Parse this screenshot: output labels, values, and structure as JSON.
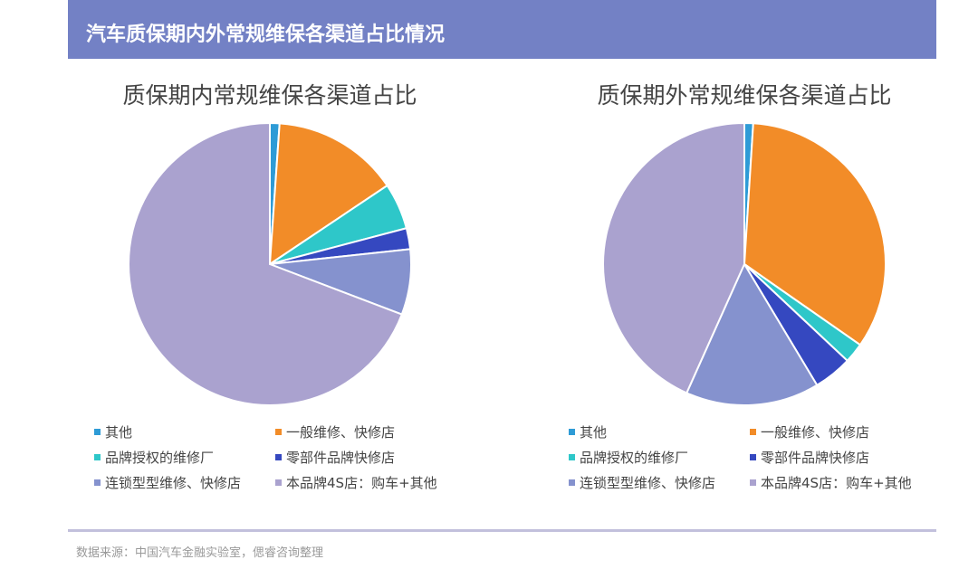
{
  "header": {
    "title": "汽车质保期内外常规维保各渠道占比情况"
  },
  "chart_data": [
    {
      "type": "pie",
      "title": "质保期内常规维保各渠道占比",
      "categories": [
        "其他",
        "一般维修、快修店",
        "品牌授权的维修厂",
        "零部件品牌快修店",
        "连锁型型维修、快修店",
        "本品牌4S店：购车+其他"
      ],
      "values": [
        1.1,
        14.5,
        5.3,
        2.4,
        7.5,
        69.2
      ],
      "colors": [
        "#2e9bd6",
        "#f28c28",
        "#2ec7c9",
        "#3548c0",
        "#8592ce",
        "#aaa2cf"
      ],
      "legend": "bottom"
    },
    {
      "type": "pie",
      "title": "质保期外常规维保各渠道占比",
      "categories": [
        "其他",
        "一般维修、快修店",
        "品牌授权的维修厂",
        "零部件品牌快修店",
        "连锁型型维修、快修店",
        "本品牌4S店：购车+其他"
      ],
      "values": [
        1.0,
        33.7,
        2.3,
        4.4,
        15.3,
        43.3
      ],
      "colors": [
        "#2e9bd6",
        "#f28c28",
        "#2ec7c9",
        "#3548c0",
        "#8592ce",
        "#aaa2cf"
      ],
      "legend": "bottom"
    }
  ],
  "footer": {
    "source": "数据来源：中国汽车金融实验室，偲睿咨询整理"
  }
}
